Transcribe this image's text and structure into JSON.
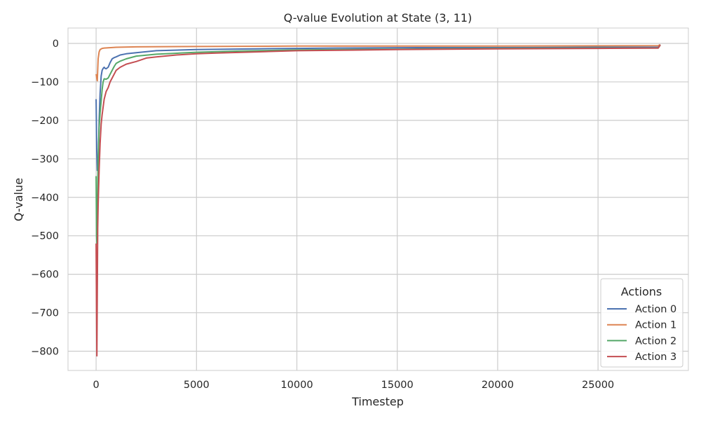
{
  "chart_data": {
    "type": "line",
    "title": "Q-value Evolution at State (3, 11)",
    "xlabel": "Timestep",
    "ylabel": "Q-value",
    "xlim": [
      -1400,
      29500
    ],
    "ylim": [
      -850,
      40
    ],
    "xticks": [
      0,
      5000,
      10000,
      15000,
      20000,
      25000
    ],
    "xtick_labels": [
      "0",
      "5000",
      "10000",
      "15000",
      "20000",
      "25000"
    ],
    "yticks": [
      0,
      -100,
      -200,
      -300,
      -400,
      -500,
      -600,
      -700,
      -800
    ],
    "ytick_labels": [
      "0",
      "−100",
      "−200",
      "−300",
      "−400",
      "−500",
      "−600",
      "−700",
      "−800"
    ],
    "grid": true,
    "legend": {
      "title": "Actions",
      "position": "bottom-right"
    },
    "series": [
      {
        "name": "Action 0",
        "color": "#4c72b0",
        "x": [
          0,
          30,
          60,
          100,
          150,
          200,
          250,
          300,
          350,
          400,
          450,
          500,
          600,
          700,
          800,
          900,
          1000,
          1200,
          1500,
          2000,
          3000,
          5000,
          8000,
          12000,
          16000,
          20000,
          25000,
          28000,
          28100
        ],
        "y": [
          -145,
          -280,
          -330,
          -330,
          -200,
          -130,
          -85,
          -70,
          -65,
          -62,
          -65,
          -66,
          -62,
          -50,
          -40,
          -37,
          -35,
          -30,
          -27,
          -24,
          -19,
          -16,
          -14,
          -12,
          -11,
          -11,
          -10,
          -10,
          -3
        ]
      },
      {
        "name": "Action 1",
        "color": "#dd8452",
        "x": [
          0,
          30,
          60,
          100,
          150,
          200,
          300,
          400,
          600,
          1000,
          2000,
          5000,
          10000,
          20000,
          28000,
          28100
        ],
        "y": [
          -80,
          -90,
          -97,
          -40,
          -22,
          -16,
          -13,
          -12,
          -11.5,
          -10,
          -9,
          -8,
          -7,
          -7,
          -6,
          -3
        ]
      },
      {
        "name": "Action 2",
        "color": "#55a868",
        "x": [
          0,
          20,
          40,
          60,
          100,
          150,
          200,
          250,
          300,
          350,
          400,
          500,
          600,
          700,
          800,
          900,
          1000,
          1200,
          1500,
          2000,
          3000,
          5000,
          7000,
          10000,
          15000,
          20000,
          25000,
          28000,
          28100
        ],
        "y": [
          -345,
          -500,
          -520,
          -460,
          -300,
          -220,
          -180,
          -150,
          -120,
          -100,
          -92,
          -93,
          -90,
          -80,
          -70,
          -60,
          -52,
          -46,
          -40,
          -33,
          -28,
          -23,
          -20,
          -17,
          -15,
          -13,
          -12,
          -12,
          -4
        ]
      },
      {
        "name": "Action 3",
        "color": "#c44e52",
        "x": [
          0,
          20,
          40,
          60,
          80,
          100,
          150,
          200,
          250,
          300,
          400,
          500,
          600,
          700,
          800,
          1000,
          1200,
          1500,
          2000,
          2500,
          3000,
          4000,
          5000,
          6000,
          8000,
          10000,
          15000,
          20000,
          25000,
          28000,
          28100
        ],
        "y": [
          -520,
          -700,
          -812,
          -640,
          -480,
          -420,
          -330,
          -260,
          -210,
          -185,
          -145,
          -125,
          -115,
          -100,
          -90,
          -70,
          -62,
          -54,
          -47,
          -38,
          -35,
          -30,
          -27,
          -25,
          -22,
          -19,
          -16,
          -14,
          -13,
          -12,
          -4
        ]
      }
    ]
  }
}
